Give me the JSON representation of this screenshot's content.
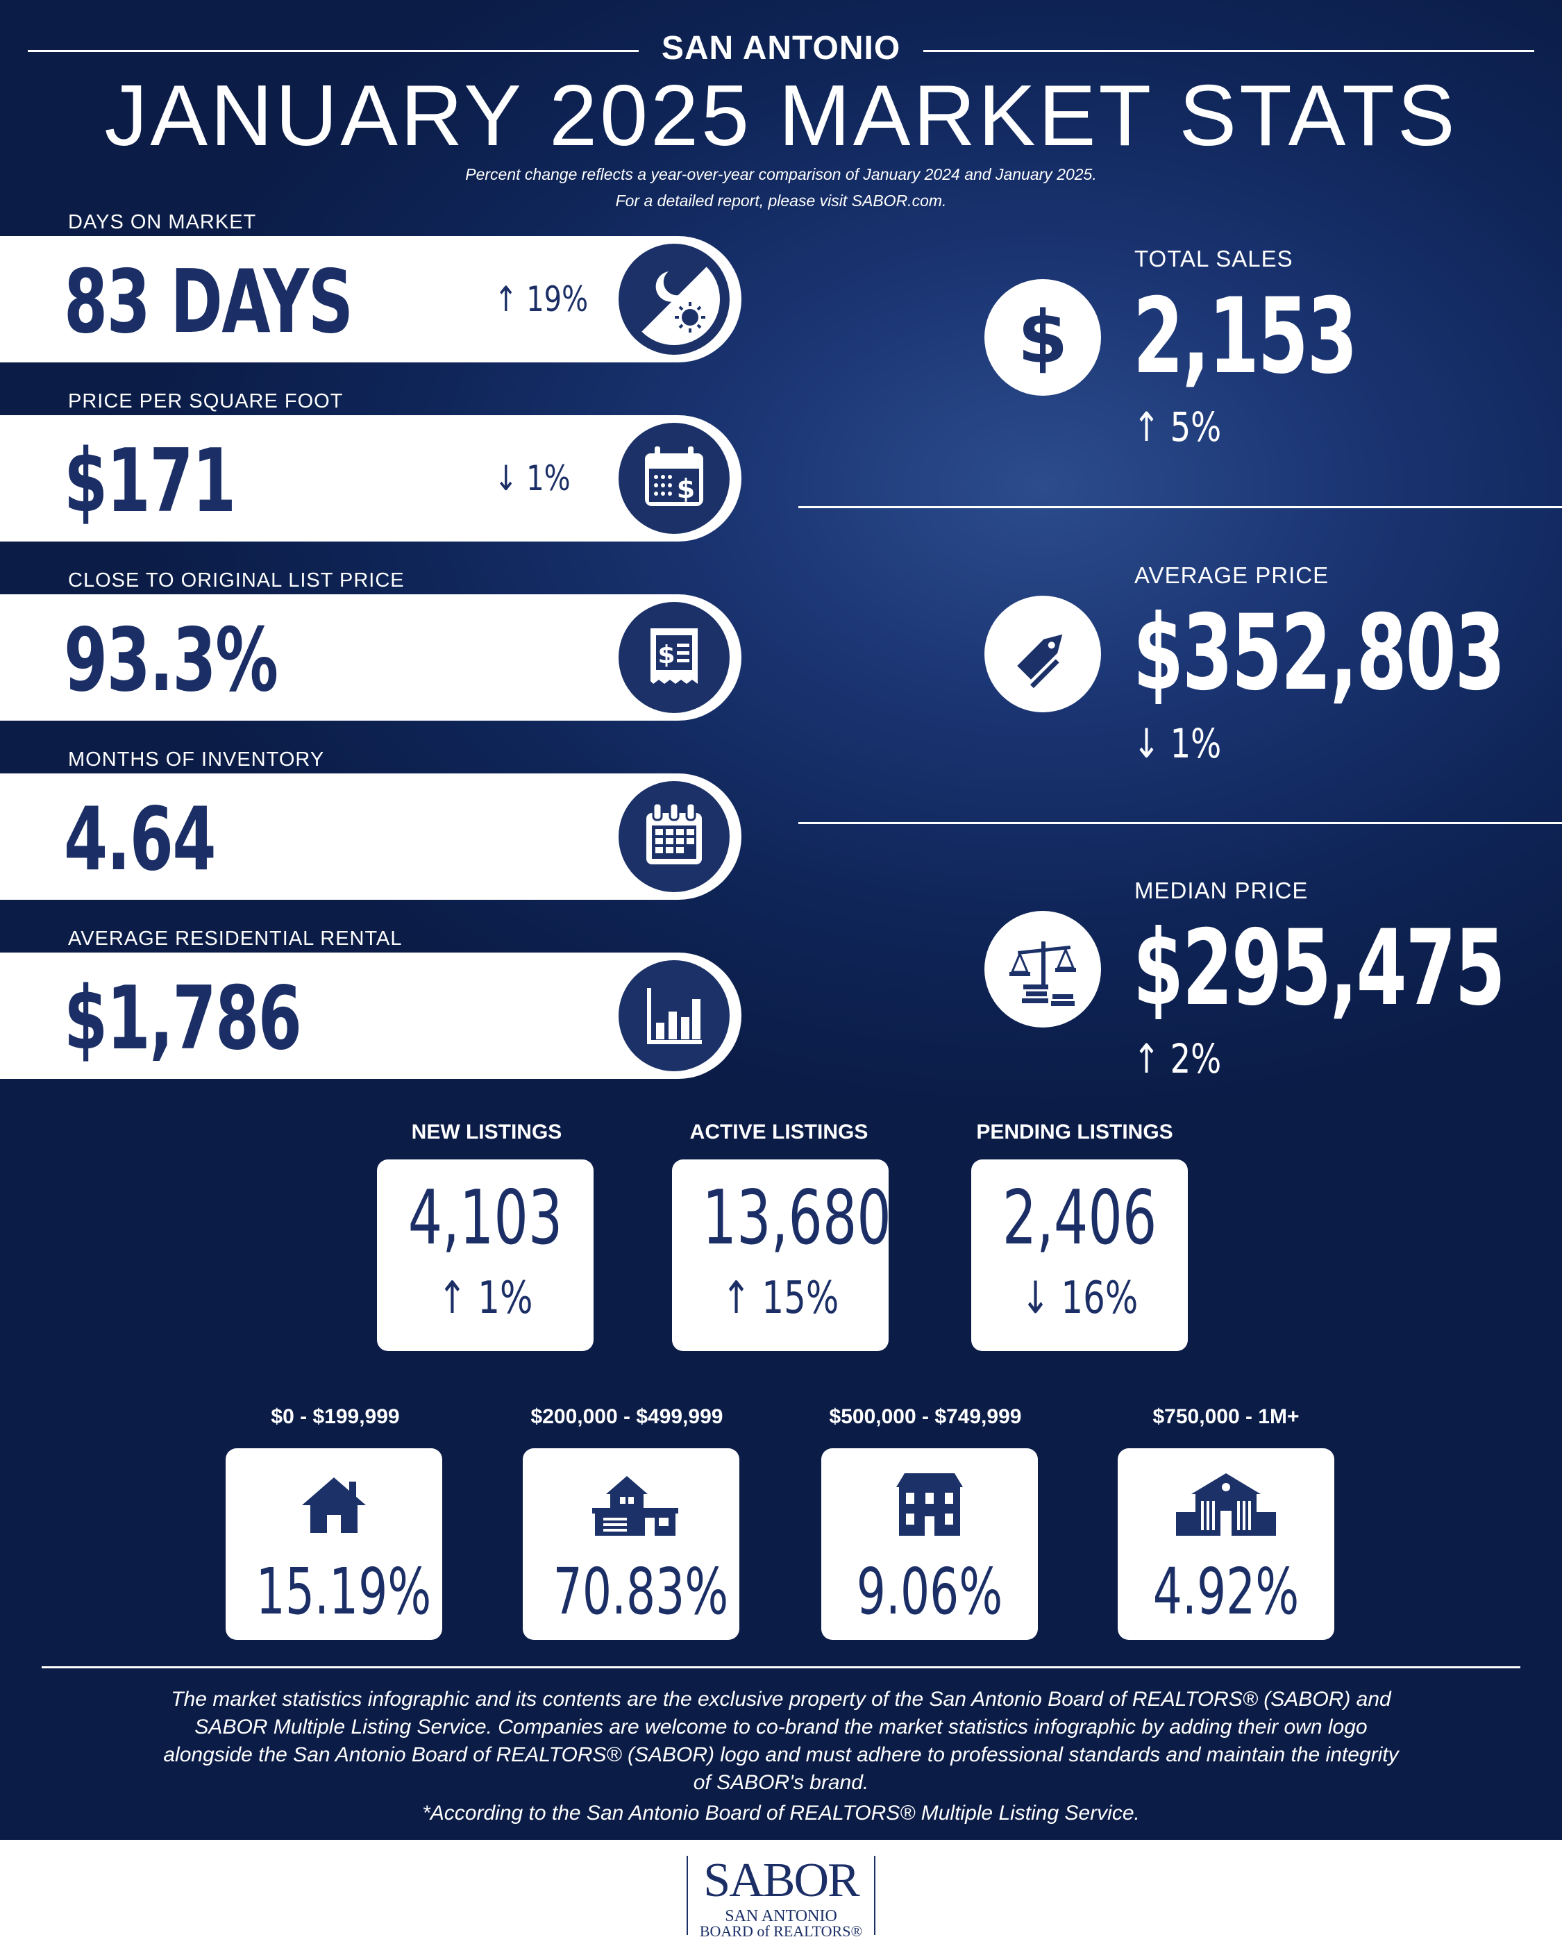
{
  "header": {
    "city": "SAN ANTONIO",
    "title": "JANUARY 2025 MARKET STATS",
    "note_line1": "Percent change reflects a year-over-year comparison of January 2024 and January 2025.",
    "note_line2": "For a detailed report, please visit SABOR.com."
  },
  "left_stats": [
    {
      "label": "DAYS ON MARKET",
      "value": "83 DAYS",
      "change": "↑ 19%",
      "icon": "day-night-icon"
    },
    {
      "label": "PRICE PER SQUARE FOOT",
      "value": "$171",
      "change": "↓ 1%",
      "icon": "calendar-dollar-icon"
    },
    {
      "label": "CLOSE TO ORIGINAL LIST PRICE",
      "value": "93.3%",
      "change": "",
      "icon": "receipt-icon"
    },
    {
      "label": "MONTHS OF INVENTORY",
      "value": "4.64",
      "change": "",
      "icon": "calendar-icon"
    },
    {
      "label": "AVERAGE RESIDENTIAL RENTAL",
      "value": "$1,786",
      "change": "",
      "icon": "bar-chart-icon"
    }
  ],
  "right_stats": [
    {
      "label": "TOTAL SALES",
      "value": "2,153",
      "change": "↑ 5%",
      "icon": "dollar-icon"
    },
    {
      "label": "AVERAGE PRICE",
      "value": "$352,803",
      "change": "↓ 1%",
      "icon": "price-tag-icon"
    },
    {
      "label": "MEDIAN PRICE",
      "value": "$295,475",
      "change": "↑ 2%",
      "icon": "scale-icon"
    }
  ],
  "listings": [
    {
      "label": "NEW LISTINGS",
      "value": "4,103",
      "change": "↑ 1%"
    },
    {
      "label": "ACTIVE LISTINGS",
      "value": "13,680",
      "change": "↑ 15%"
    },
    {
      "label": "PENDING LISTINGS",
      "value": "2,406",
      "change": "↓ 16%"
    }
  ],
  "price_ranges": [
    {
      "label": "$0 - $199,999",
      "value": "15.19%",
      "icon": "small-house-icon"
    },
    {
      "label": "$200,000 - $499,999",
      "value": "70.83%",
      "icon": "house-garage-icon"
    },
    {
      "label": "$500,000 - $749,999",
      "value": "9.06%",
      "icon": "two-story-house-icon"
    },
    {
      "label": "$750,000 - 1M+",
      "value": "4.92%",
      "icon": "mansion-icon"
    }
  ],
  "footer": {
    "disclaimer_lines": [
      "The market statistics infographic and its contents are the exclusive property of the San Antonio Board of REALTORS® (SABOR) and",
      "SABOR Multiple Listing Service. Companies are welcome to co-brand the market statistics infographic by adding their own logo",
      "alongside the San Antonio Board of REALTORS® (SABOR) logo and must adhere to professional standards and maintain the integrity",
      "of SABOR's brand."
    ],
    "source": "*According to the San Antonio Board of REALTORS® Multiple Listing Service."
  },
  "logo": {
    "brand": "SABOR",
    "line1": "SAN ANTONIO",
    "line2": "BOARD of REALTORS®"
  },
  "colors": {
    "navy": "#1b2f66",
    "background": "#0f2558",
    "white": "#ffffff"
  }
}
